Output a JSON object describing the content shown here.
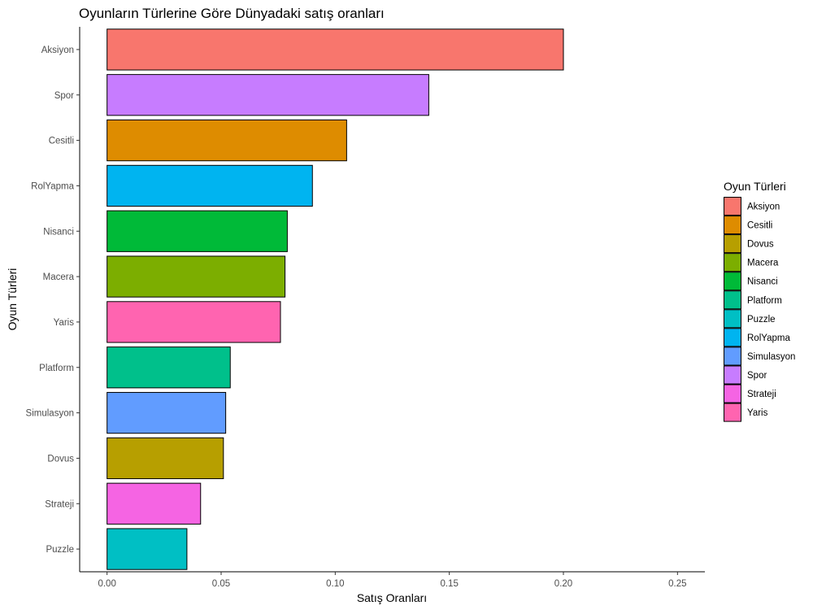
{
  "chart_data": {
    "type": "bar",
    "orientation": "horizontal",
    "title": "Oyunların Türlerine Göre Dünyadaki satış oranları",
    "xlabel": "Satış Oranları",
    "ylabel": "Oyun Türleri",
    "xlim": [
      -0.012,
      0.262
    ],
    "xticks": [
      "0.00",
      "0.05",
      "0.10",
      "0.15",
      "0.20",
      "0.25"
    ],
    "grid": false,
    "categories": [
      "Aksiyon",
      "Spor",
      "Cesitli",
      "RolYapma",
      "Nisanci",
      "Macera",
      "Yaris",
      "Platform",
      "Simulasyon",
      "Dovus",
      "Strateji",
      "Puzzle"
    ],
    "values": [
      0.2,
      0.141,
      0.105,
      0.09,
      0.079,
      0.078,
      0.076,
      0.054,
      0.052,
      0.051,
      0.041,
      0.035
    ],
    "legend": {
      "title": "Oyun Türleri",
      "placement": "right",
      "items": [
        {
          "label": "Aksiyon",
          "color": "#F8766D"
        },
        {
          "label": "Cesitli",
          "color": "#DE8C00"
        },
        {
          "label": "Dovus",
          "color": "#B79F00"
        },
        {
          "label": "Macera",
          "color": "#7CAE00"
        },
        {
          "label": "Nisanci",
          "color": "#00BA38"
        },
        {
          "label": "Platform",
          "color": "#00C08B"
        },
        {
          "label": "Puzzle",
          "color": "#00BFC4"
        },
        {
          "label": "RolYapma",
          "color": "#00B4F0"
        },
        {
          "label": "Simulasyon",
          "color": "#619CFF"
        },
        {
          "label": "Spor",
          "color": "#C77CFF"
        },
        {
          "label": "Strateji",
          "color": "#F564E3"
        },
        {
          "label": "Yaris",
          "color": "#FF64B0"
        }
      ]
    }
  }
}
